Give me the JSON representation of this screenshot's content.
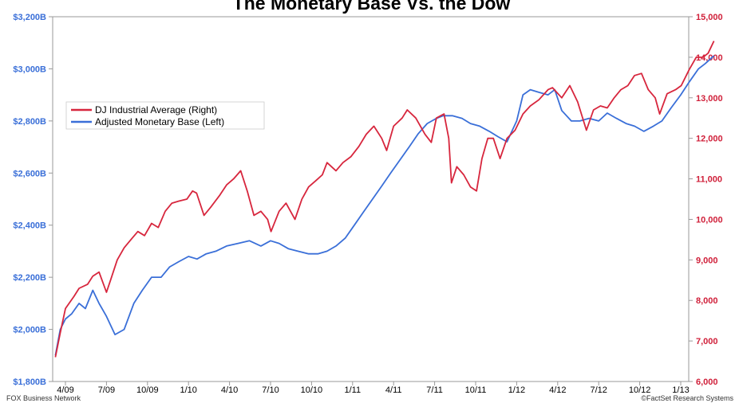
{
  "chart_data": {
    "type": "line",
    "title": "The Monetary Base Vs. the Dow",
    "xlabel": "",
    "ylabel": "",
    "x_tick_labels": [
      "4/09",
      "7/09",
      "10/09",
      "1/10",
      "4/10",
      "7/10",
      "10/10",
      "1/11",
      "4/11",
      "7/11",
      "10/11",
      "1/12",
      "4/12",
      "7/12",
      "10/12",
      "1/13"
    ],
    "x_range": [
      "2009-03",
      "2013-03"
    ],
    "y_left": {
      "ylim": [
        1800,
        3200
      ],
      "ticks": [
        1800,
        2000,
        2200,
        2400,
        2600,
        2800,
        3000,
        3200
      ],
      "tick_labels": [
        "$1,800B",
        "$2,000B",
        "$2,200B",
        "$2,400B",
        "$2,600B",
        "$2,800B",
        "$3,000B",
        "$3,200B"
      ],
      "color": "#3a6fd8"
    },
    "y_right": {
      "ylim": [
        6000,
        15000
      ],
      "ticks": [
        6000,
        7000,
        8000,
        9000,
        10000,
        11000,
        12000,
        13000,
        14000,
        15000
      ],
      "tick_labels": [
        "6,000",
        "7,000",
        "8,000",
        "9,000",
        "10,000",
        "11,000",
        "12,000",
        "13,000",
        "14,000",
        "15,000"
      ],
      "color": "#d0203a"
    },
    "grid": false,
    "legend_position": "upper-left",
    "series": [
      {
        "name": "DJ Industrial Average (Right)",
        "axis": "right",
        "color": "#d7263d",
        "x": [
          "2009-03-09",
          "2009-03-20",
          "2009-04-01",
          "2009-04-20",
          "2009-05-01",
          "2009-05-20",
          "2009-06-01",
          "2009-06-15",
          "2009-07-01",
          "2009-07-10",
          "2009-07-25",
          "2009-08-10",
          "2009-08-25",
          "2009-09-10",
          "2009-09-25",
          "2009-10-10",
          "2009-10-25",
          "2009-11-10",
          "2009-11-25",
          "2009-12-10",
          "2009-12-28",
          "2010-01-10",
          "2010-01-19",
          "2010-02-05",
          "2010-02-20",
          "2010-03-10",
          "2010-03-25",
          "2010-04-10",
          "2010-04-26",
          "2010-05-10",
          "2010-05-25",
          "2010-06-10",
          "2010-06-25",
          "2010-07-02",
          "2010-07-20",
          "2010-08-05",
          "2010-08-25",
          "2010-09-10",
          "2010-09-25",
          "2010-10-10",
          "2010-10-25",
          "2010-11-05",
          "2010-11-25",
          "2010-12-10",
          "2010-12-28",
          "2011-01-15",
          "2011-02-01",
          "2011-02-18",
          "2011-03-05",
          "2011-03-16",
          "2011-04-01",
          "2011-04-20",
          "2011-05-01",
          "2011-05-20",
          "2011-06-10",
          "2011-06-24",
          "2011-07-05",
          "2011-07-22",
          "2011-08-02",
          "2011-08-08",
          "2011-08-20",
          "2011-09-05",
          "2011-09-20",
          "2011-10-03",
          "2011-10-15",
          "2011-10-28",
          "2011-11-10",
          "2011-11-25",
          "2011-12-10",
          "2011-12-28",
          "2012-01-15",
          "2012-02-01",
          "2012-02-20",
          "2012-03-10",
          "2012-03-20",
          "2012-04-10",
          "2012-04-28",
          "2012-05-15",
          "2012-06-04",
          "2012-06-20",
          "2012-07-05",
          "2012-07-20",
          "2012-08-05",
          "2012-08-20",
          "2012-09-05",
          "2012-09-20",
          "2012-10-05",
          "2012-10-20",
          "2012-11-05",
          "2012-11-15",
          "2012-12-01",
          "2012-12-20",
          "2013-01-02",
          "2013-01-20",
          "2013-02-05",
          "2013-02-20",
          "2013-03-01",
          "2013-03-14"
        ],
        "values": [
          6600,
          7200,
          7800,
          8100,
          8300,
          8400,
          8600,
          8700,
          8200,
          8500,
          9000,
          9300,
          9500,
          9700,
          9600,
          9900,
          9800,
          10200,
          10400,
          10450,
          10500,
          10700,
          10650,
          10100,
          10300,
          10600,
          10850,
          11000,
          11200,
          10700,
          10100,
          10200,
          10000,
          9700,
          10200,
          10400,
          10000,
          10500,
          10800,
          10950,
          11100,
          11400,
          11200,
          11400,
          11550,
          11800,
          12100,
          12300,
          12000,
          11700,
          12300,
          12500,
          12700,
          12500,
          12100,
          11900,
          12500,
          12600,
          12000,
          10900,
          11300,
          11100,
          10800,
          10700,
          11500,
          12000,
          12000,
          11500,
          12000,
          12200,
          12600,
          12800,
          12950,
          13200,
          13250,
          13000,
          13300,
          12900,
          12200,
          12700,
          12800,
          12750,
          13000,
          13200,
          13300,
          13550,
          13600,
          13200,
          13000,
          12600,
          13100,
          13200,
          13300,
          13700,
          14000,
          14000,
          14100,
          14400
        ]
      },
      {
        "name": "Adjusted Monetary Base (Left)",
        "axis": "left",
        "color": "#3a6fd8",
        "x": [
          "2009-03-09",
          "2009-03-20",
          "2009-04-01",
          "2009-04-15",
          "2009-05-01",
          "2009-05-15",
          "2009-06-01",
          "2009-06-15",
          "2009-07-01",
          "2009-07-20",
          "2009-08-10",
          "2009-09-01",
          "2009-09-20",
          "2009-10-10",
          "2009-11-01",
          "2009-11-20",
          "2009-12-10",
          "2010-01-01",
          "2010-01-20",
          "2010-02-10",
          "2010-03-01",
          "2010-03-25",
          "2010-04-20",
          "2010-05-15",
          "2010-06-10",
          "2010-07-01",
          "2010-07-20",
          "2010-08-10",
          "2010-09-01",
          "2010-09-25",
          "2010-10-15",
          "2010-11-05",
          "2010-11-25",
          "2010-12-15",
          "2011-01-05",
          "2011-01-25",
          "2011-02-15",
          "2011-03-05",
          "2011-03-25",
          "2011-04-15",
          "2011-05-05",
          "2011-05-25",
          "2011-06-15",
          "2011-07-05",
          "2011-07-20",
          "2011-08-10",
          "2011-09-01",
          "2011-09-20",
          "2011-10-10",
          "2011-11-01",
          "2011-11-20",
          "2011-12-10",
          "2012-01-01",
          "2012-01-15",
          "2012-02-01",
          "2012-02-20",
          "2012-03-10",
          "2012-03-25",
          "2012-04-10",
          "2012-05-01",
          "2012-05-20",
          "2012-06-10",
          "2012-07-01",
          "2012-07-20",
          "2012-08-10",
          "2012-09-01",
          "2012-09-20",
          "2012-10-10",
          "2012-11-01",
          "2012-11-20",
          "2012-12-10",
          "2013-01-01",
          "2013-01-20",
          "2013-02-10",
          "2013-02-25",
          "2013-03-14"
        ],
        "values": [
          1900,
          2000,
          2040,
          2060,
          2100,
          2080,
          2150,
          2100,
          2050,
          1980,
          2000,
          2100,
          2150,
          2200,
          2200,
          2240,
          2260,
          2280,
          2270,
          2290,
          2300,
          2320,
          2330,
          2340,
          2320,
          2340,
          2330,
          2310,
          2300,
          2290,
          2290,
          2300,
          2320,
          2350,
          2400,
          2450,
          2500,
          2550,
          2600,
          2650,
          2700,
          2750,
          2790,
          2810,
          2820,
          2820,
          2810,
          2790,
          2780,
          2760,
          2740,
          2720,
          2800,
          2900,
          2920,
          2910,
          2900,
          2920,
          2840,
          2800,
          2800,
          2810,
          2800,
          2830,
          2810,
          2790,
          2780,
          2760,
          2780,
          2800,
          2850,
          2900,
          2950,
          3000,
          3020,
          3050
        ]
      }
    ]
  },
  "legend": {
    "items": [
      {
        "label": "DJ Industrial Average (Right)",
        "color": "#d7263d"
      },
      {
        "label": "Adjusted Monetary Base (Left)",
        "color": "#3a6fd8"
      }
    ]
  },
  "footer": {
    "left": "FOX Business Network",
    "right": "©FactSet Research Systems"
  }
}
